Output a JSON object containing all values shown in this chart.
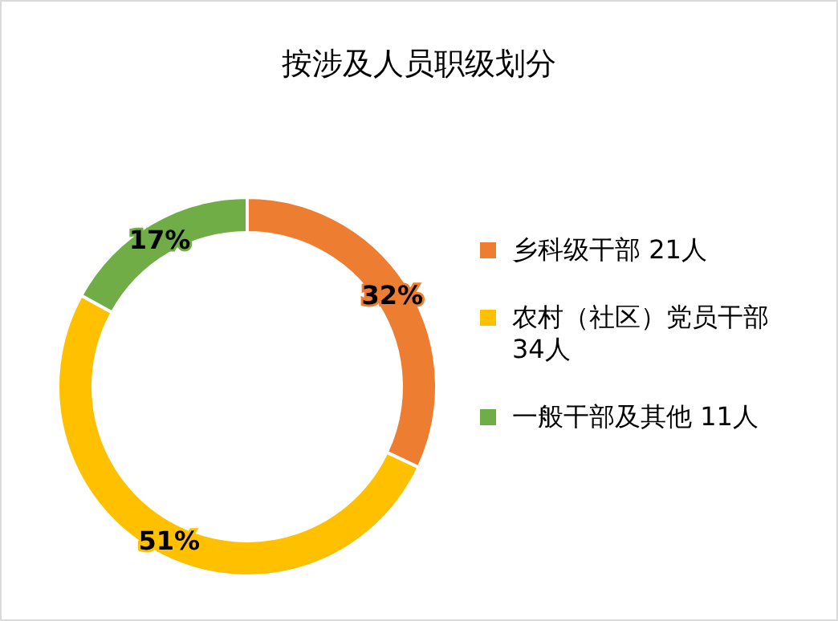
{
  "chart_data": {
    "type": "donut",
    "title": "按涉及人员职级划分",
    "categories": [
      "乡科级干部 21人",
      "农村（社区）党员干部 34人",
      "一般干部及其他 11人"
    ],
    "values": [
      32,
      51,
      17
    ],
    "colors": [
      "#ed7d31",
      "#ffc000",
      "#70ad47"
    ],
    "value_labels": [
      "32%",
      "51%",
      "17%"
    ],
    "legend": "right"
  }
}
